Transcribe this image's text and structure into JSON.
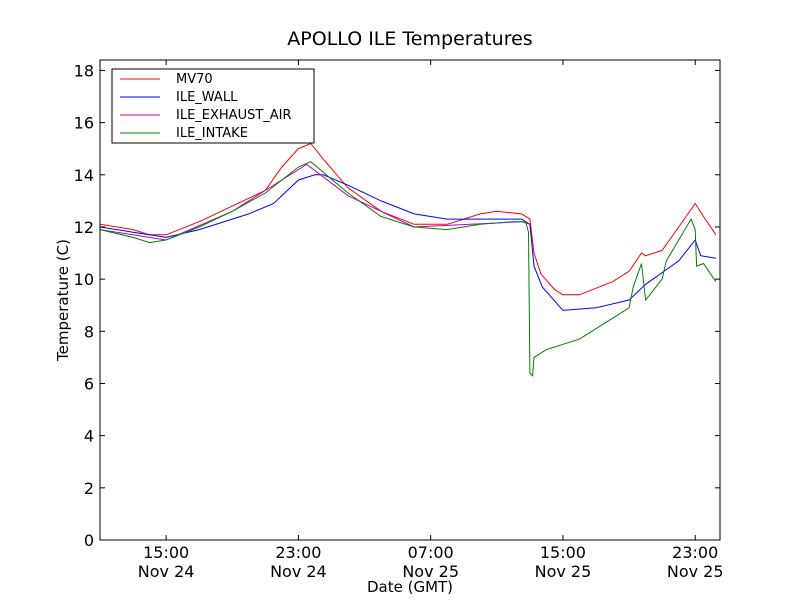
{
  "chart_data": {
    "type": "line",
    "title": "APOLLO ILE Temperatures",
    "xlabel": "Date (GMT)",
    "ylabel": "Temperature (C)",
    "xlim": [
      "2012-11-24 11:00",
      "2012-11-26 00:30"
    ],
    "ylim": [
      0,
      18.4
    ],
    "y_ticks": [
      0,
      2,
      4,
      6,
      8,
      10,
      12,
      14,
      16,
      18
    ],
    "x_ticks": [
      {
        "x": "2012-11-24 15:00",
        "time": "15:00",
        "date": "Nov 24"
      },
      {
        "x": "2012-11-24 23:00",
        "time": "23:00",
        "date": "Nov 24"
      },
      {
        "x": "2012-11-25 07:00",
        "time": "07:00",
        "date": "Nov 25"
      },
      {
        "x": "2012-11-25 15:00",
        "time": "15:00",
        "date": "Nov 25"
      },
      {
        "x": "2012-11-25 23:00",
        "time": "23:00",
        "date": "Nov 25"
      }
    ],
    "grid": false,
    "legend_position": "top-left",
    "series": [
      {
        "name": "MV70",
        "color": "#ff0000",
        "points": [
          [
            "2012-11-24 11:00",
            12.1
          ],
          [
            "2012-11-24 13:00",
            11.9
          ],
          [
            "2012-11-24 14:00",
            11.7
          ],
          [
            "2012-11-24 15:00",
            11.7
          ],
          [
            "2012-11-24 17:00",
            12.2
          ],
          [
            "2012-11-24 19:00",
            12.8
          ],
          [
            "2012-11-24 21:00",
            13.4
          ],
          [
            "2012-11-24 22:00",
            14.3
          ],
          [
            "2012-11-24 23:00",
            15.0
          ],
          [
            "2012-11-24 23:45",
            15.2
          ],
          [
            "2012-11-25 00:30",
            14.6
          ],
          [
            "2012-11-25 02:00",
            13.5
          ],
          [
            "2012-11-25 04:00",
            12.6
          ],
          [
            "2012-11-25 06:00",
            12.1
          ],
          [
            "2012-11-25 08:00",
            12.1
          ],
          [
            "2012-11-25 10:00",
            12.5
          ],
          [
            "2012-11-25 11:00",
            12.6
          ],
          [
            "2012-11-25 12:30",
            12.5
          ],
          [
            "2012-11-25 13:00",
            12.3
          ],
          [
            "2012-11-25 13:15",
            11.0
          ],
          [
            "2012-11-25 13:40",
            10.2
          ],
          [
            "2012-11-25 14:30",
            9.6
          ],
          [
            "2012-11-25 15:00",
            9.4
          ],
          [
            "2012-11-25 16:00",
            9.4
          ],
          [
            "2012-11-25 18:00",
            9.9
          ],
          [
            "2012-11-25 19:00",
            10.3
          ],
          [
            "2012-11-25 19:45",
            11.0
          ],
          [
            "2012-11-25 20:00",
            10.9
          ],
          [
            "2012-11-25 21:00",
            11.1
          ],
          [
            "2012-11-25 22:00",
            12.0
          ],
          [
            "2012-11-25 23:00",
            12.9
          ],
          [
            "2012-11-25 23:30",
            12.4
          ],
          [
            "2012-11-26 00:15",
            11.7
          ]
        ]
      },
      {
        "name": "ILE_WALL",
        "color": "#0000ff",
        "points": [
          [
            "2012-11-24 11:00",
            12.0
          ],
          [
            "2012-11-24 13:00",
            11.8
          ],
          [
            "2012-11-24 14:00",
            11.7
          ],
          [
            "2012-11-24 15:00",
            11.6
          ],
          [
            "2012-11-24 17:00",
            11.9
          ],
          [
            "2012-11-24 20:00",
            12.5
          ],
          [
            "2012-11-24 21:30",
            12.9
          ],
          [
            "2012-11-24 23:00",
            13.8
          ],
          [
            "2012-11-25 00:00",
            14.0
          ],
          [
            "2012-11-25 00:30",
            14.0
          ],
          [
            "2012-11-25 02:00",
            13.6
          ],
          [
            "2012-11-25 04:00",
            13.0
          ],
          [
            "2012-11-25 06:00",
            12.5
          ],
          [
            "2012-11-25 08:00",
            12.3
          ],
          [
            "2012-11-25 10:00",
            12.3
          ],
          [
            "2012-11-25 12:30",
            12.3
          ],
          [
            "2012-11-25 13:00",
            12.1
          ],
          [
            "2012-11-25 13:15",
            10.5
          ],
          [
            "2012-11-25 13:45",
            9.7
          ],
          [
            "2012-11-25 15:00",
            8.8
          ],
          [
            "2012-11-25 17:00",
            8.9
          ],
          [
            "2012-11-25 19:00",
            9.2
          ],
          [
            "2012-11-25 20:00",
            9.8
          ],
          [
            "2012-11-25 22:00",
            10.7
          ],
          [
            "2012-11-25 23:00",
            11.5
          ],
          [
            "2012-11-25 23:20",
            10.9
          ],
          [
            "2012-11-26 00:15",
            10.8
          ]
        ]
      },
      {
        "name": "ILE_EXHAUST_AIR",
        "color": "#bf00bf",
        "points": [
          [
            "2012-11-24 11:00",
            11.9
          ],
          [
            "2012-11-24 15:00",
            11.5
          ],
          [
            "2012-11-24 19:00",
            12.6
          ],
          [
            "2012-11-24 23:30",
            14.4
          ],
          [
            "2012-11-25 02:00",
            13.2
          ],
          [
            "2012-11-25 06:00",
            12.0
          ],
          [
            "2012-11-25 12:30",
            12.2
          ],
          [
            "2012-11-25 13:00",
            12.1
          ]
        ]
      },
      {
        "name": "ILE_INTAKE",
        "color": "#008000",
        "points": [
          [
            "2012-11-24 11:00",
            11.9
          ],
          [
            "2012-11-24 13:00",
            11.6
          ],
          [
            "2012-11-24 14:00",
            11.4
          ],
          [
            "2012-11-24 15:00",
            11.5
          ],
          [
            "2012-11-24 17:00",
            12.0
          ],
          [
            "2012-11-24 19:00",
            12.6
          ],
          [
            "2012-11-24 21:00",
            13.3
          ],
          [
            "2012-11-24 22:00",
            13.8
          ],
          [
            "2012-11-24 23:00",
            14.3
          ],
          [
            "2012-11-24 23:45",
            14.5
          ],
          [
            "2012-11-25 00:30",
            14.1
          ],
          [
            "2012-11-25 02:00",
            13.3
          ],
          [
            "2012-11-25 04:00",
            12.4
          ],
          [
            "2012-11-25 06:00",
            12.0
          ],
          [
            "2012-11-25 08:00",
            11.9
          ],
          [
            "2012-11-25 10:00",
            12.1
          ],
          [
            "2012-11-25 12:00",
            12.2
          ],
          [
            "2012-11-25 12:45",
            12.2
          ],
          [
            "2012-11-25 12:55",
            11.8
          ],
          [
            "2012-11-25 13:00",
            6.4
          ],
          [
            "2012-11-25 13:10",
            6.3
          ],
          [
            "2012-11-25 13:15",
            7.0
          ],
          [
            "2012-11-25 14:00",
            7.3
          ],
          [
            "2012-11-25 15:00",
            7.5
          ],
          [
            "2012-11-25 16:00",
            7.7
          ],
          [
            "2012-11-25 17:00",
            8.1
          ],
          [
            "2012-11-25 18:00",
            8.5
          ],
          [
            "2012-11-25 19:00",
            8.9
          ],
          [
            "2012-11-25 19:15",
            9.7
          ],
          [
            "2012-11-25 19:45",
            10.6
          ],
          [
            "2012-11-25 20:00",
            9.2
          ],
          [
            "2012-11-25 20:30",
            9.6
          ],
          [
            "2012-11-25 21:00",
            10.0
          ],
          [
            "2012-11-25 21:15",
            10.7
          ],
          [
            "2012-11-25 22:00",
            11.5
          ],
          [
            "2012-11-25 22:45",
            12.3
          ],
          [
            "2012-11-25 23:00",
            11.9
          ],
          [
            "2012-11-25 23:05",
            10.5
          ],
          [
            "2012-11-25 23:30",
            10.6
          ],
          [
            "2012-11-26 00:15",
            9.9
          ]
        ]
      }
    ]
  }
}
